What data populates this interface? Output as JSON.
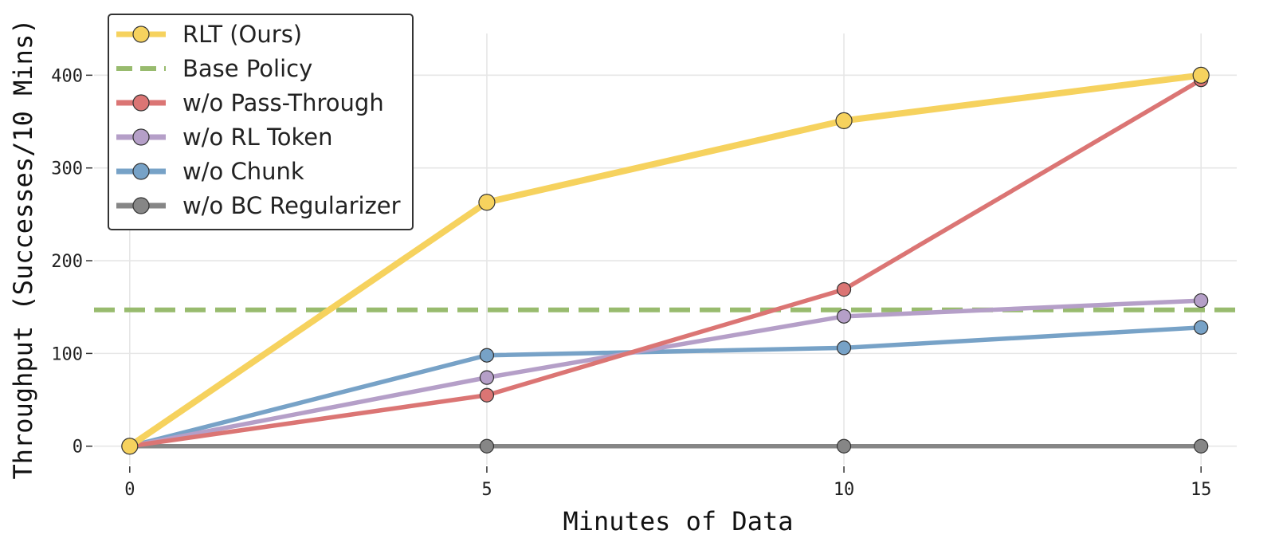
{
  "chart_data": {
    "type": "line",
    "title": "",
    "xlabel": "Minutes of Data",
    "ylabel": "Throughput (Successes/10 Mins)",
    "x": [
      0,
      5,
      10,
      15
    ],
    "xticks": [
      0,
      5,
      10,
      15
    ],
    "yticks": [
      0,
      100,
      200,
      300,
      400
    ],
    "xlim": [
      -0.5,
      15.5
    ],
    "ylim": [
      -20,
      445
    ],
    "grid": true,
    "legend_position": "top-left",
    "series": [
      {
        "name": "RLT (Ours)",
        "values": [
          0,
          263,
          351,
          400
        ],
        "color": "#f6d25e",
        "style": "solid",
        "marker": true
      },
      {
        "name": "Base Policy",
        "values": [
          147,
          147,
          147,
          147
        ],
        "color": "#98bb6e",
        "style": "dashed",
        "marker": false
      },
      {
        "name": "w/o Pass-Through",
        "values": [
          0,
          55,
          169,
          395
        ],
        "color": "#db7574",
        "style": "solid",
        "marker": true
      },
      {
        "name": "w/o RL Token",
        "values": [
          0,
          74,
          140,
          157
        ],
        "color": "#b59fc8",
        "style": "solid",
        "marker": true
      },
      {
        "name": "w/o Chunk",
        "values": [
          0,
          98,
          106,
          128
        ],
        "color": "#77a2c7",
        "style": "solid",
        "marker": true
      },
      {
        "name": "w/o BC Regularizer",
        "values": [
          0,
          0,
          0,
          0
        ],
        "color": "#868686",
        "style": "solid",
        "marker": true
      }
    ]
  }
}
